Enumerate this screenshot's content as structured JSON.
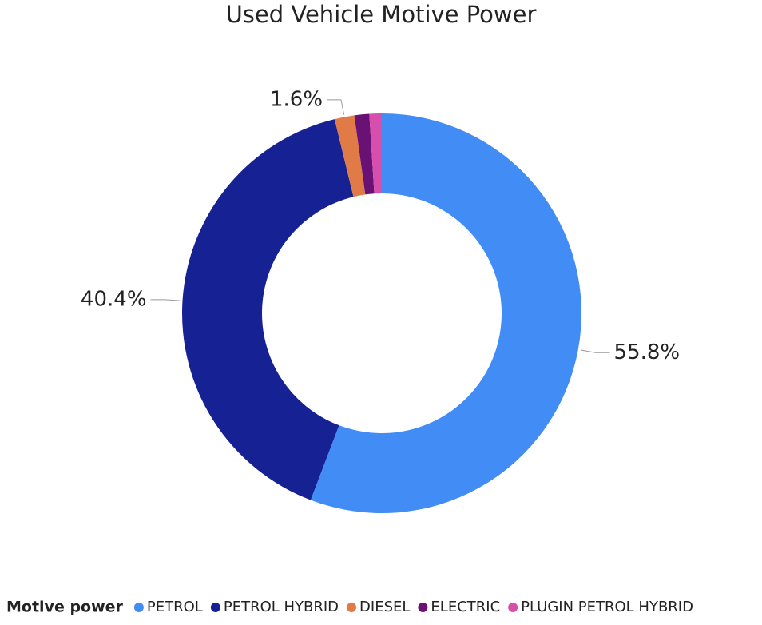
{
  "chart_data": {
    "type": "donut",
    "title": "Used Vehicle Motive Power",
    "legend_title": "Motive power",
    "categories": [
      "PETROL",
      "PETROL HYBRID",
      "DIESEL",
      "ELECTRIC",
      "PLUGIN PETROL HYBRID"
    ],
    "values": [
      55.8,
      40.4,
      1.6,
      1.2,
      1.0
    ],
    "value_labels": [
      "55.8%",
      "40.4%",
      "1.6%",
      null,
      null
    ],
    "colors": [
      "#418cf5",
      "#162294",
      "#e07a47",
      "#6a1176",
      "#d64fac"
    ],
    "legend": "bottom-left"
  }
}
